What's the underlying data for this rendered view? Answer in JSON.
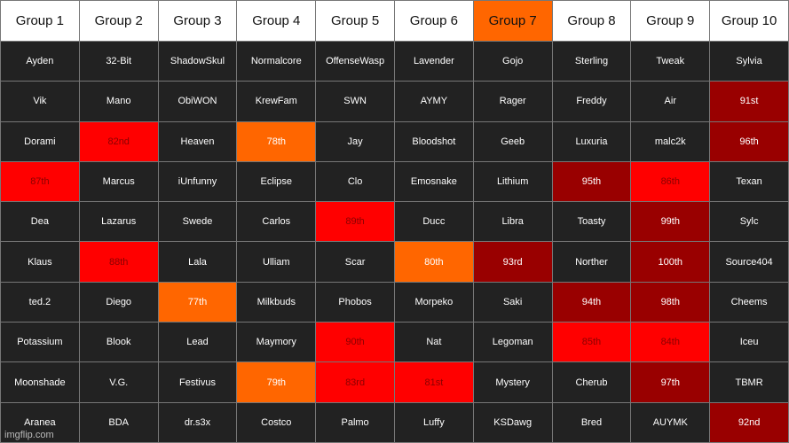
{
  "colors": {
    "dark": "#222222",
    "orange": "#ff6600",
    "red": "#ff0000",
    "darkred": "#990000",
    "header": "#ffffff"
  },
  "headers": [
    {
      "label": "Group 1",
      "color": "white"
    },
    {
      "label": "Group 2",
      "color": "white"
    },
    {
      "label": "Group 3",
      "color": "white"
    },
    {
      "label": "Group 4",
      "color": "white"
    },
    {
      "label": "Group 5",
      "color": "white"
    },
    {
      "label": "Group 6",
      "color": "white"
    },
    {
      "label": "Group 7",
      "color": "orange"
    },
    {
      "label": "Group 8",
      "color": "white"
    },
    {
      "label": "Group 9",
      "color": "white"
    },
    {
      "label": "Group 10",
      "color": "white"
    }
  ],
  "rows": [
    [
      {
        "text": "Ayden",
        "color": "dark"
      },
      {
        "text": "32-Bit",
        "color": "dark"
      },
      {
        "text": "ShadowSkul",
        "color": "dark"
      },
      {
        "text": "Normalcore",
        "color": "dark"
      },
      {
        "text": "OffenseWasp",
        "color": "dark"
      },
      {
        "text": "Lavender",
        "color": "dark"
      },
      {
        "text": "Gojo",
        "color": "dark"
      },
      {
        "text": "Sterling",
        "color": "dark"
      },
      {
        "text": "Tweak",
        "color": "dark"
      },
      {
        "text": "Sylvia",
        "color": "dark"
      }
    ],
    [
      {
        "text": "Vik",
        "color": "dark"
      },
      {
        "text": "Mano",
        "color": "dark"
      },
      {
        "text": "ObiWON",
        "color": "dark"
      },
      {
        "text": "KrewFam",
        "color": "dark"
      },
      {
        "text": "SWN",
        "color": "dark"
      },
      {
        "text": "AYMY",
        "color": "dark"
      },
      {
        "text": "Rager",
        "color": "dark"
      },
      {
        "text": "Freddy",
        "color": "dark"
      },
      {
        "text": "Air",
        "color": "dark"
      },
      {
        "text": "91st",
        "color": "darkred"
      }
    ],
    [
      {
        "text": "Dorami",
        "color": "dark"
      },
      {
        "text": "82nd",
        "color": "red"
      },
      {
        "text": "Heaven",
        "color": "dark"
      },
      {
        "text": "78th",
        "color": "orange"
      },
      {
        "text": "Jay",
        "color": "dark"
      },
      {
        "text": "Bloodshot",
        "color": "dark"
      },
      {
        "text": "Geeb",
        "color": "dark"
      },
      {
        "text": "Luxuria",
        "color": "dark"
      },
      {
        "text": "malc2k",
        "color": "dark"
      },
      {
        "text": "96th",
        "color": "darkred"
      }
    ],
    [
      {
        "text": "87th",
        "color": "red"
      },
      {
        "text": "Marcus",
        "color": "dark"
      },
      {
        "text": "iUnfunny",
        "color": "dark"
      },
      {
        "text": "Eclipse",
        "color": "dark"
      },
      {
        "text": "Clo",
        "color": "dark"
      },
      {
        "text": "Emosnake",
        "color": "dark"
      },
      {
        "text": "Lithium",
        "color": "dark"
      },
      {
        "text": "95th",
        "color": "darkred"
      },
      {
        "text": "86th",
        "color": "red"
      },
      {
        "text": "Texan",
        "color": "dark"
      }
    ],
    [
      {
        "text": "Dea",
        "color": "dark"
      },
      {
        "text": "Lazarus",
        "color": "dark"
      },
      {
        "text": "Swede",
        "color": "dark"
      },
      {
        "text": "Carlos",
        "color": "dark"
      },
      {
        "text": "89th",
        "color": "red"
      },
      {
        "text": "Ducc",
        "color": "dark"
      },
      {
        "text": "Libra",
        "color": "dark"
      },
      {
        "text": "Toasty",
        "color": "dark"
      },
      {
        "text": "99th",
        "color": "darkred"
      },
      {
        "text": "Sylc",
        "color": "dark"
      }
    ],
    [
      {
        "text": "Klaus",
        "color": "dark"
      },
      {
        "text": "88th",
        "color": "red"
      },
      {
        "text": "Lala",
        "color": "dark"
      },
      {
        "text": "Ulliam",
        "color": "dark"
      },
      {
        "text": "Scar",
        "color": "dark"
      },
      {
        "text": "80th",
        "color": "orange"
      },
      {
        "text": "93rd",
        "color": "darkred"
      },
      {
        "text": "Norther",
        "color": "dark"
      },
      {
        "text": "100th",
        "color": "darkred"
      },
      {
        "text": "Source404",
        "color": "dark"
      }
    ],
    [
      {
        "text": "ted.2",
        "color": "dark"
      },
      {
        "text": "Diego",
        "color": "dark"
      },
      {
        "text": "77th",
        "color": "orange"
      },
      {
        "text": "Milkbuds",
        "color": "dark"
      },
      {
        "text": "Phobos",
        "color": "dark"
      },
      {
        "text": "Morpeko",
        "color": "dark"
      },
      {
        "text": "Saki",
        "color": "dark"
      },
      {
        "text": "94th",
        "color": "darkred"
      },
      {
        "text": "98th",
        "color": "darkred"
      },
      {
        "text": "Cheems",
        "color": "dark"
      }
    ],
    [
      {
        "text": "Potassium",
        "color": "dark"
      },
      {
        "text": "Blook",
        "color": "dark"
      },
      {
        "text": "Lead",
        "color": "dark"
      },
      {
        "text": "Maymory",
        "color": "dark"
      },
      {
        "text": "90th",
        "color": "red"
      },
      {
        "text": "Nat",
        "color": "dark"
      },
      {
        "text": "Legoman",
        "color": "dark"
      },
      {
        "text": "85th",
        "color": "red"
      },
      {
        "text": "84th",
        "color": "red"
      },
      {
        "text": "Iceu",
        "color": "dark"
      }
    ],
    [
      {
        "text": "Moonshade",
        "color": "dark"
      },
      {
        "text": "V.G.",
        "color": "dark"
      },
      {
        "text": "Festivus",
        "color": "dark"
      },
      {
        "text": "79th",
        "color": "orange"
      },
      {
        "text": "83rd",
        "color": "red"
      },
      {
        "text": "81st",
        "color": "red"
      },
      {
        "text": "Mystery",
        "color": "dark"
      },
      {
        "text": "Cherub",
        "color": "dark"
      },
      {
        "text": "97th",
        "color": "darkred"
      },
      {
        "text": "TBMR",
        "color": "dark"
      }
    ],
    [
      {
        "text": "Aranea",
        "color": "dark"
      },
      {
        "text": "BDA",
        "color": "dark"
      },
      {
        "text": "dr.s3x",
        "color": "dark"
      },
      {
        "text": "Costco",
        "color": "dark"
      },
      {
        "text": "Palmo",
        "color": "dark"
      },
      {
        "text": "Luffy",
        "color": "dark"
      },
      {
        "text": "KSDawg",
        "color": "dark"
      },
      {
        "text": "Bred",
        "color": "dark"
      },
      {
        "text": "AUYMK",
        "color": "dark"
      },
      {
        "text": "92nd",
        "color": "darkred"
      }
    ]
  ],
  "watermark": "imgflip.com"
}
